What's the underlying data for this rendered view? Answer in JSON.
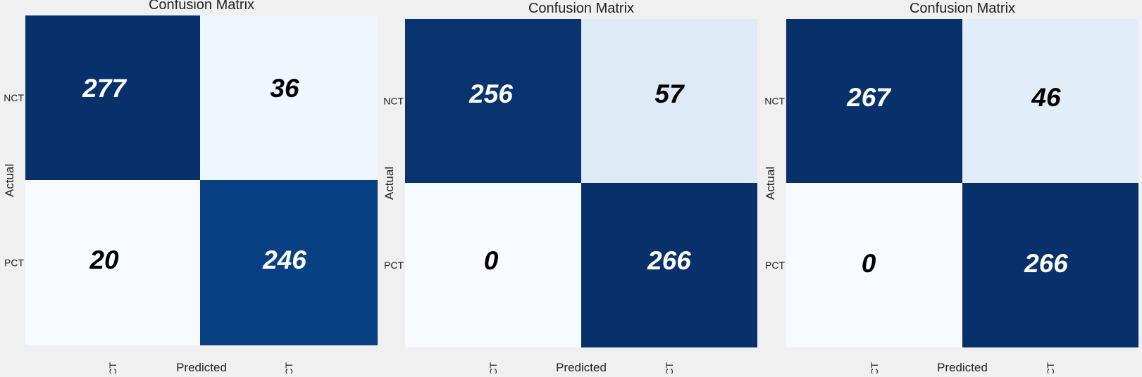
{
  "chart_data": [
    {
      "type": "heatmap",
      "title": "Confusion Matrix",
      "xlabel": "Predicted",
      "ylabel": "Actual",
      "x_categories": [
        "NCT",
        "PCT"
      ],
      "y_categories": [
        "NCT",
        "PCT"
      ],
      "values": [
        [
          277,
          36
        ],
        [
          20,
          246
        ]
      ],
      "colormap": "Blues",
      "annotation_style": "bold italic serif"
    },
    {
      "type": "heatmap",
      "title": "Confusion Matrix",
      "xlabel": "Predicted",
      "ylabel": "Actual",
      "x_categories": [
        "NCT",
        "PCT"
      ],
      "y_categories": [
        "NCT",
        "PCT"
      ],
      "values": [
        [
          256,
          57
        ],
        [
          0,
          266
        ]
      ],
      "colormap": "Blues",
      "annotation_style": "bold italic serif"
    },
    {
      "type": "heatmap",
      "title": "Confusion Matrix",
      "xlabel": "Predicted",
      "ylabel": "Actual",
      "x_categories": [
        "NCT",
        "PCT"
      ],
      "y_categories": [
        "NCT",
        "PCT"
      ],
      "values": [
        [
          267,
          46
        ],
        [
          0,
          266
        ]
      ],
      "colormap": "Blues",
      "annotation_style": "bold italic serif"
    }
  ],
  "colors": {
    "background": "#f0f0f0",
    "dark_cell": "#08306b",
    "mid_dark_cell": "#084d96",
    "light_cell": "#deebf7",
    "lighter_cell": "#e4eef8",
    "lightest_cell": "#f7fbff",
    "dark_text": "#ffffff",
    "light_text": "#000000"
  }
}
